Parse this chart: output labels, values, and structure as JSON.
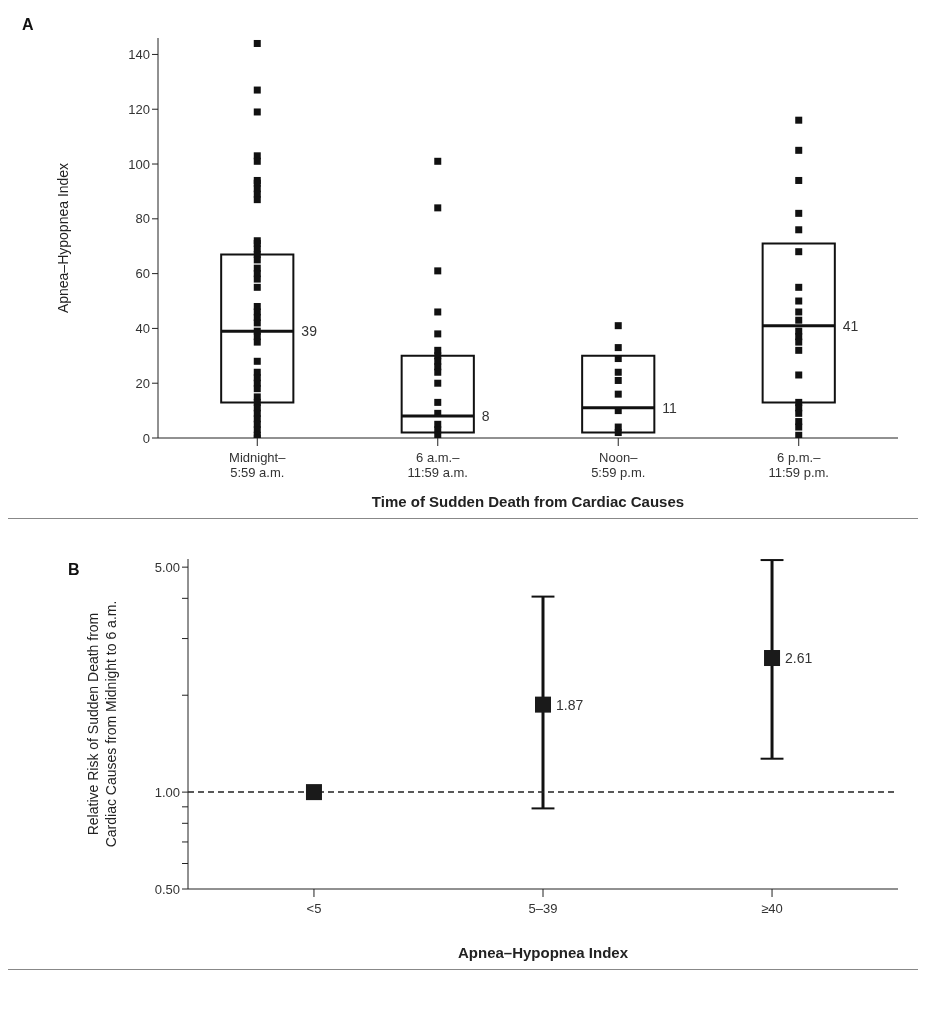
{
  "chart_data": [
    {
      "type": "box",
      "title": "A",
      "xlabel": "Time of Sudden Death from Cardiac Causes",
      "ylabel": "Apnea–Hypopnea Index",
      "categories": [
        "Midnight–5:59 a.m.",
        "6 a.m.–11:59 a.m.",
        "Noon–5:59 p.m.",
        "6 p.m.–11:59 p.m."
      ],
      "boxes": [
        {
          "low": 13,
          "q1": 13,
          "median": 39,
          "q3": 67,
          "high": 67
        },
        {
          "low": 2,
          "q1": 2,
          "median": 8,
          "q3": 30,
          "high": 30
        },
        {
          "low": 2,
          "q1": 2,
          "median": 11,
          "q3": 30,
          "high": 30
        },
        {
          "low": 13,
          "q1": 13,
          "median": 41,
          "q3": 71,
          "high": 71
        }
      ],
      "series": [
        {
          "type": "scatter",
          "color": "#111111",
          "x": [
            "Midnight–5:59 a.m.",
            "Midnight–5:59 a.m.",
            "Midnight–5:59 a.m.",
            "Midnight–5:59 a.m.",
            "Midnight–5:59 a.m.",
            "Midnight–5:59 a.m.",
            "Midnight–5:59 a.m.",
            "Midnight–5:59 a.m.",
            "Midnight–5:59 a.m.",
            "Midnight–5:59 a.m.",
            "Midnight–5:59 a.m.",
            "Midnight–5:59 a.m.",
            "Midnight–5:59 a.m.",
            "Midnight–5:59 a.m.",
            "Midnight–5:59 a.m.",
            "Midnight–5:59 a.m.",
            "Midnight–5:59 a.m.",
            "Midnight–5:59 a.m.",
            "Midnight–5:59 a.m.",
            "Midnight–5:59 a.m.",
            "Midnight–5:59 a.m.",
            "Midnight–5:59 a.m.",
            "Midnight–5:59 a.m.",
            "Midnight–5:59 a.m.",
            "Midnight–5:59 a.m.",
            "Midnight–5:59 a.m.",
            "Midnight–5:59 a.m.",
            "Midnight–5:59 a.m.",
            "Midnight–5:59 a.m.",
            "Midnight–5:59 a.m.",
            "Midnight–5:59 a.m.",
            "Midnight–5:59 a.m.",
            "Midnight–5:59 a.m.",
            "Midnight–5:59 a.m.",
            "Midnight–5:59 a.m.",
            "Midnight–5:59 a.m.",
            "Midnight–5:59 a.m.",
            "Midnight–5:59 a.m.",
            "Midnight–5:59 a.m.",
            "Midnight–5:59 a.m.",
            "6 a.m.–11:59 a.m.",
            "6 a.m.–11:59 a.m.",
            "6 a.m.–11:59 a.m.",
            "6 a.m.–11:59 a.m.",
            "6 a.m.–11:59 a.m.",
            "6 a.m.–11:59 a.m.",
            "6 a.m.–11:59 a.m.",
            "6 a.m.–11:59 a.m.",
            "6 a.m.–11:59 a.m.",
            "6 a.m.–11:59 a.m.",
            "6 a.m.–11:59 a.m.",
            "6 a.m.–11:59 a.m.",
            "6 a.m.–11:59 a.m.",
            "6 a.m.–11:59 a.m.",
            "6 a.m.–11:59 a.m.",
            "6 a.m.–11:59 a.m.",
            "Noon–5:59 p.m.",
            "Noon–5:59 p.m.",
            "Noon–5:59 p.m.",
            "Noon–5:59 p.m.",
            "Noon–5:59 p.m.",
            "Noon–5:59 p.m.",
            "Noon–5:59 p.m.",
            "Noon–5:59 p.m.",
            "Noon–5:59 p.m.",
            "6 p.m.–11:59 p.m.",
            "6 p.m.–11:59 p.m.",
            "6 p.m.–11:59 p.m.",
            "6 p.m.–11:59 p.m.",
            "6 p.m.–11:59 p.m.",
            "6 p.m.–11:59 p.m.",
            "6 p.m.–11:59 p.m.",
            "6 p.m.–11:59 p.m.",
            "6 p.m.–11:59 p.m.",
            "6 p.m.–11:59 p.m.",
            "6 p.m.–11:59 p.m.",
            "6 p.m.–11:59 p.m.",
            "6 p.m.–11:59 p.m.",
            "6 p.m.–11:59 p.m.",
            "6 p.m.–11:59 p.m.",
            "6 p.m.–11:59 p.m.",
            "6 p.m.–11:59 p.m.",
            "6 p.m.–11:59 p.m.",
            "6 p.m.–11:59 p.m.",
            "6 p.m.–11:59 p.m.",
            "6 p.m.–11:59 p.m."
          ],
          "values": [
            144,
            127,
            119,
            103,
            101,
            94,
            93,
            91,
            89,
            87,
            72,
            71,
            69,
            67,
            65,
            62,
            60,
            58,
            55,
            48,
            46,
            44,
            42,
            39,
            37,
            35,
            28,
            24,
            22,
            20,
            18,
            15,
            13,
            11,
            9,
            7,
            5,
            3,
            1,
            0,
            101,
            84,
            61,
            46,
            38,
            32,
            30,
            28,
            26,
            24,
            20,
            13,
            9,
            5,
            3,
            1,
            41,
            33,
            29,
            24,
            21,
            16,
            10,
            4,
            2,
            116,
            105,
            94,
            82,
            76,
            68,
            55,
            50,
            46,
            43,
            39,
            37,
            35,
            32,
            23,
            13,
            11,
            9,
            6,
            4,
            1
          ]
        }
      ],
      "ylim": [
        0,
        146
      ],
      "yticks": [
        0,
        20,
        40,
        60,
        80,
        100,
        120,
        140
      ],
      "marker": "square",
      "annotations": [
        "39",
        "8",
        "11",
        "41"
      ]
    },
    {
      "type": "scatter",
      "title": "B",
      "xlabel": "Apnea–Hypopnea Index",
      "ylabel": "Relative Risk of Sudden Death from Cardiac Causes from Midnight to 6 a.m.",
      "categories": [
        "<5",
        "5–39",
        "≥40"
      ],
      "values": [
        1.0,
        1.87,
        2.61
      ],
      "value_labels": [
        null,
        "1.87",
        "2.61"
      ],
      "errors": [
        null,
        [
          0.89,
          4.05
        ],
        [
          1.27,
          5.26
        ]
      ],
      "color": "#1a1a1a",
      "marker": "square",
      "log": true,
      "ylim": [
        0.5,
        5.3
      ],
      "yticks": [
        {
          "value": 0.5,
          "label": "0.50"
        },
        {
          "value": 0.6,
          "label": null
        },
        {
          "value": 0.7,
          "label": null
        },
        {
          "value": 0.8,
          "label": null
        },
        {
          "value": 0.9,
          "label": null
        },
        {
          "value": 1,
          "label": "1.00"
        },
        {
          "value": 2,
          "label": null
        },
        {
          "value": 3,
          "label": null
        },
        {
          "value": 4,
          "label": null
        },
        {
          "value": 5,
          "label": "5.00"
        }
      ],
      "ref_lines": [
        {
          "axis": "y",
          "value": 1,
          "line_style": "dashed"
        }
      ]
    }
  ]
}
